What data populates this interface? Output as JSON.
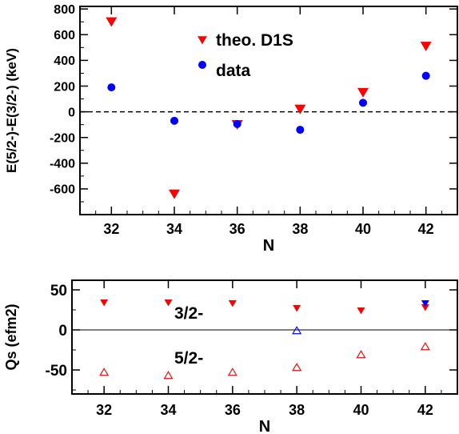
{
  "colors": {
    "theory": "#ff0000",
    "data": "#0000ff",
    "axis": "#000000"
  },
  "chart_data": [
    {
      "type": "scatter",
      "title": "",
      "xlabel": "N",
      "ylabel": "E(5/2-)-E(3/2-) (keV)",
      "xlim": [
        31,
        43
      ],
      "ylim": [
        -800,
        820
      ],
      "x_ticks": [
        "32",
        "34",
        "36",
        "38",
        "40",
        "42"
      ],
      "y_ticks": [
        "800",
        "600",
        "400",
        "200",
        "0",
        "-200",
        "-400",
        "-600"
      ],
      "zero_line": "dashed",
      "legend": {
        "placement": "top-right",
        "entries": [
          {
            "label": "theo. D1S",
            "marker": "triangle-down",
            "color": "#ff0000"
          },
          {
            "label": "data",
            "marker": "circle",
            "color": "#0000ff"
          }
        ]
      },
      "series": [
        {
          "name": "theo. D1S",
          "marker": "triangle-down",
          "color": "#ff0000",
          "points": [
            [
              32,
              700
            ],
            [
              34,
              -640
            ],
            [
              36,
              -100
            ],
            [
              38,
              20
            ],
            [
              40,
              150
            ],
            [
              42,
              510
            ]
          ]
        },
        {
          "name": "data",
          "marker": "circle",
          "color": "#0000ff",
          "points": [
            [
              32,
              190
            ],
            [
              34,
              -70
            ],
            [
              36,
              -95
            ],
            [
              38,
              -140
            ],
            [
              40,
              70
            ],
            [
              42,
              280
            ]
          ]
        }
      ]
    },
    {
      "type": "scatter",
      "title": "",
      "xlabel": "N",
      "ylabel": "Qs (efm2)",
      "xlim": [
        31,
        43
      ],
      "ylim": [
        -80,
        62
      ],
      "x_ticks": [
        "32",
        "34",
        "36",
        "38",
        "40",
        "42"
      ],
      "y_ticks": [
        "50",
        "0",
        "-50"
      ],
      "zero_line": "solid",
      "annotations": [
        "3/2-",
        "5/2-"
      ],
      "series": [
        {
          "marker": "triangle-down",
          "color": "#ff0000",
          "points": [
            [
              32,
              34
            ],
            [
              34,
              34
            ],
            [
              36,
              33
            ],
            [
              38,
              27
            ],
            [
              40,
              24
            ],
            [
              42,
              28
            ]
          ]
        },
        {
          "marker": "triangle-down",
          "color": "#0000ff",
          "points": [
            [
              42,
              33
            ]
          ]
        },
        {
          "marker": "triangle-up-open",
          "color": "#ff0000",
          "points": [
            [
              32,
              -53
            ],
            [
              34,
              -57
            ],
            [
              36,
              -53
            ],
            [
              38,
              -47
            ],
            [
              40,
              -31
            ],
            [
              42,
              -21
            ]
          ]
        },
        {
          "marker": "triangle-up-open",
          "color": "#0000ff",
          "points": [
            [
              38,
              -1
            ]
          ]
        }
      ]
    }
  ]
}
